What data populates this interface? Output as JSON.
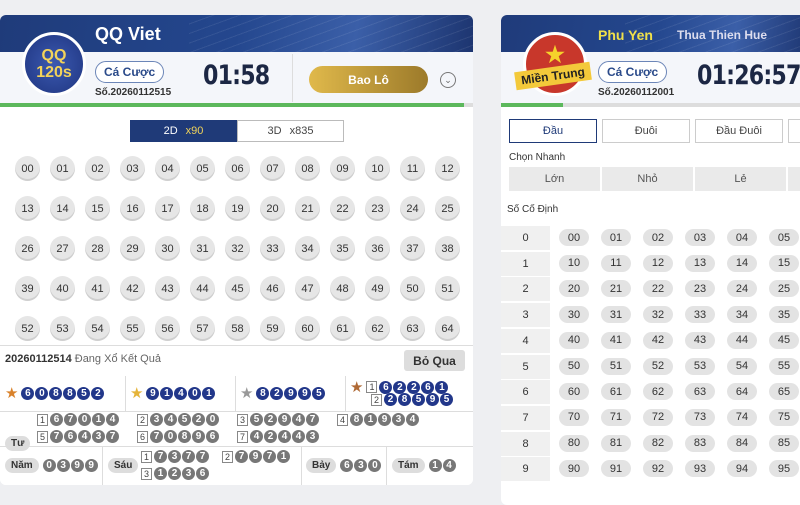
{
  "left": {
    "title": "QQ Viet",
    "badge": "QQ 120s",
    "bet_label": "Cá Cược",
    "serial": "Số.20260112515",
    "timer": "01:58",
    "main_button": "Bao Lô",
    "progress": 0.98,
    "tabs": [
      {
        "label": "2D",
        "mult": "x90",
        "active": true
      },
      {
        "label": "3D",
        "mult": "x835",
        "active": false
      }
    ],
    "numbers": [
      "00",
      "01",
      "02",
      "03",
      "04",
      "05",
      "06",
      "07",
      "08",
      "09",
      "10",
      "11",
      "12",
      "13",
      "14",
      "15",
      "16",
      "17",
      "18",
      "19",
      "20",
      "21",
      "22",
      "23",
      "24",
      "25",
      "26",
      "27",
      "28",
      "29",
      "30",
      "31",
      "32",
      "33",
      "34",
      "35",
      "36",
      "37",
      "38",
      "39",
      "40",
      "41",
      "42",
      "43",
      "44",
      "45",
      "46",
      "47",
      "48",
      "49",
      "50",
      "51",
      "52",
      "53",
      "54",
      "55",
      "56",
      "57",
      "58",
      "59",
      "60",
      "61",
      "62",
      "63",
      "64"
    ],
    "results": {
      "draw_id": "20260112514",
      "status": "Đang Xổ Kết Quả",
      "skip_button": "Bỏ Qua",
      "special": "608852",
      "first": "91401",
      "second": "82995",
      "third": [
        {
          "i": "1",
          "n": "62261"
        },
        {
          "i": "2",
          "n": "28595"
        }
      ],
      "fourth_label": "Tư",
      "fourth": [
        {
          "i": "1",
          "n": "67014"
        },
        {
          "i": "2",
          "n": "34520"
        },
        {
          "i": "3",
          "n": "52947"
        },
        {
          "i": "4",
          "n": "81934"
        },
        {
          "i": "5",
          "n": "76437"
        },
        {
          "i": "6",
          "n": "70896"
        },
        {
          "i": "7",
          "n": "42443"
        }
      ],
      "fifth_label": "Năm",
      "fifth": "0399",
      "sixth_label": "Sáu",
      "sixth": [
        {
          "i": "1",
          "n": "7377"
        },
        {
          "i": "2",
          "n": "7971"
        },
        {
          "i": "3",
          "n": "1236"
        }
      ],
      "seventh_label": "Bảy",
      "seventh": "630",
      "eighth_label": "Tám",
      "eighth": "14"
    }
  },
  "right": {
    "tabs": [
      {
        "label": "Phu Yen",
        "active": true
      },
      {
        "label": "Thua Thien Hue",
        "active": false
      }
    ],
    "badge": "Miền Trung",
    "bet_label": "Cá Cược",
    "serial": "Số.20260112001",
    "timer": "01:26:57",
    "progress": 0.2,
    "modes": [
      "Đầu",
      "Đuôi",
      "Đầu Đuôi",
      ""
    ],
    "quick_label": "Chọn Nhanh",
    "quick": [
      "Lớn",
      "Nhỏ",
      "Lẻ",
      ""
    ],
    "fixed_label": "Số Cố Định",
    "rows": [
      {
        "head": "0",
        "nums": [
          "00",
          "01",
          "02",
          "03",
          "04",
          "05"
        ]
      },
      {
        "head": "1",
        "nums": [
          "10",
          "11",
          "12",
          "13",
          "14",
          "15"
        ]
      },
      {
        "head": "2",
        "nums": [
          "20",
          "21",
          "22",
          "23",
          "24",
          "25"
        ]
      },
      {
        "head": "3",
        "nums": [
          "30",
          "31",
          "32",
          "33",
          "34",
          "35"
        ]
      },
      {
        "head": "4",
        "nums": [
          "40",
          "41",
          "42",
          "43",
          "44",
          "45"
        ]
      },
      {
        "head": "5",
        "nums": [
          "50",
          "51",
          "52",
          "53",
          "54",
          "55"
        ]
      },
      {
        "head": "6",
        "nums": [
          "60",
          "61",
          "62",
          "63",
          "64",
          "65"
        ]
      },
      {
        "head": "7",
        "nums": [
          "70",
          "71",
          "72",
          "73",
          "74",
          "75"
        ]
      },
      {
        "head": "8",
        "nums": [
          "80",
          "81",
          "82",
          "83",
          "84",
          "85"
        ]
      },
      {
        "head": "9",
        "nums": [
          "90",
          "91",
          "92",
          "93",
          "94",
          "95"
        ]
      }
    ]
  },
  "colors": {
    "navy": "#22378a",
    "green": "#5cb85c",
    "gold": "#c9a23a"
  }
}
